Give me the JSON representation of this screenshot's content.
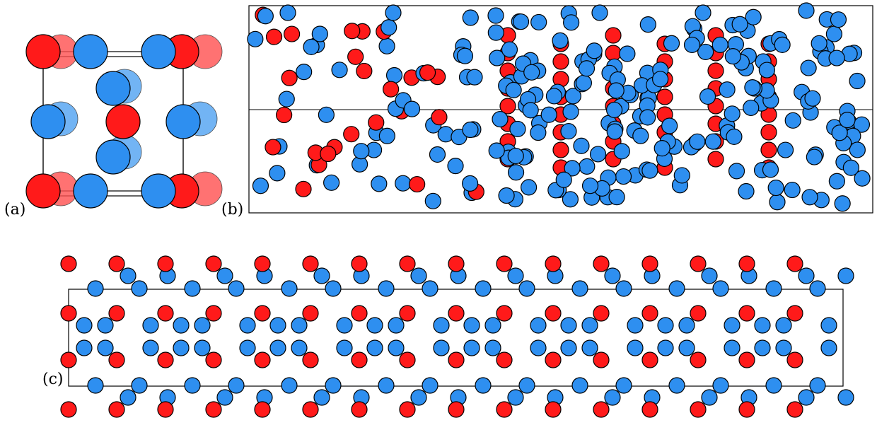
{
  "panels": [
    {
      "id": "a",
      "label": "(a)"
    },
    {
      "id": "b",
      "label": "(b)"
    },
    {
      "id": "c",
      "label": "(c)"
    }
  ],
  "legend_colors": {
    "red_atom": "#ff1a1a",
    "blue_atom": "#2e8ff0",
    "outline": "#000000"
  }
}
